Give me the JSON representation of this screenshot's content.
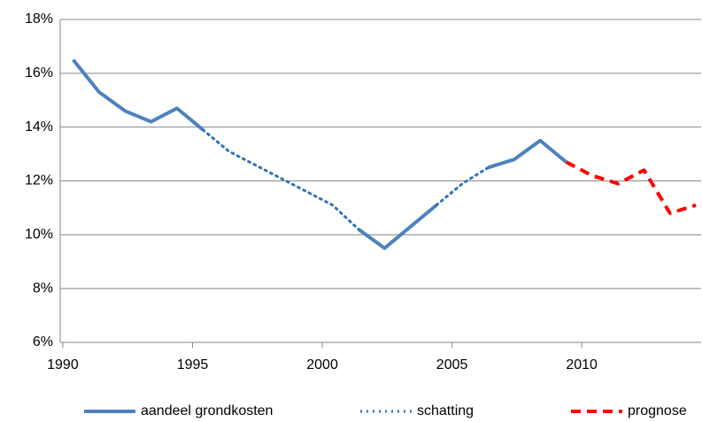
{
  "chart_data": {
    "type": "line",
    "x": [
      1990.4,
      1991.4,
      1992.4,
      1993.4,
      1994.4,
      1995.4,
      1996.4,
      1997.4,
      1998.4,
      1999.4,
      2000.4,
      2001.4,
      2002.4,
      2003.4,
      2004.4,
      2005.4,
      2006.4,
      2007.4,
      2008.4,
      2009.4,
      2010.4,
      2011.4,
      2012.4,
      2013.4,
      2014.4
    ],
    "series": [
      {
        "name": "aandeel grondkosten",
        "color": "#4f81bd",
        "style": "solid",
        "values": [
          16.5,
          15.3,
          14.6,
          14.2,
          14.7,
          13.9,
          null,
          null,
          null,
          null,
          null,
          10.2,
          9.5,
          10.3,
          11.1,
          null,
          12.5,
          12.8,
          13.5,
          12.7,
          null,
          null,
          null,
          null,
          null
        ]
      },
      {
        "name": "schatting",
        "color": "#2e75b6",
        "style": "dotted",
        "values": [
          null,
          null,
          null,
          null,
          null,
          13.9,
          13.1,
          12.6,
          12.1,
          11.6,
          11.1,
          10.2,
          null,
          null,
          11.1,
          11.9,
          12.5,
          null,
          null,
          null,
          null,
          null,
          null,
          null,
          null
        ]
      },
      {
        "name": "prognose",
        "color": "#ff0000",
        "style": "dashed",
        "values": [
          null,
          null,
          null,
          null,
          null,
          null,
          null,
          null,
          null,
          null,
          null,
          null,
          null,
          null,
          null,
          null,
          null,
          null,
          null,
          12.7,
          12.2,
          11.9,
          12.4,
          10.8,
          11.1
        ]
      }
    ],
    "xlim": [
      1989.9,
      2014.6
    ],
    "xticks": [
      1990,
      1995,
      2000,
      2005,
      2010
    ],
    "ylim": [
      6,
      18
    ],
    "yticks": [
      {
        "value": 6,
        "label": "6%"
      },
      {
        "value": 8,
        "label": "8%"
      },
      {
        "value": 10,
        "label": "10%"
      },
      {
        "value": 12,
        "label": "12%"
      },
      {
        "value": 14,
        "label": "14%"
      },
      {
        "value": 16,
        "label": "16%"
      },
      {
        "value": 18,
        "label": "18%"
      }
    ],
    "grid": true,
    "legend": "bottom"
  }
}
